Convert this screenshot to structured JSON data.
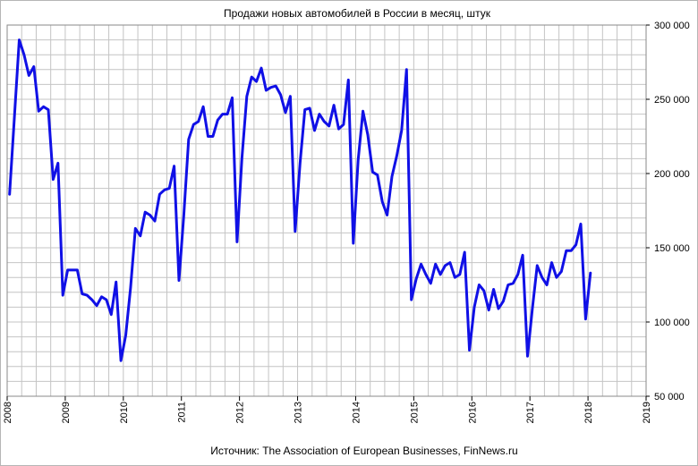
{
  "chart_data": {
    "type": "line",
    "title": "Продажи новых автомобилей в России в месяц, штук",
    "source": "Источник: The Association of European Businesses, FinNews.ru",
    "xlabel": "",
    "ylabel": "",
    "xlim": [
      2008,
      2019
    ],
    "ylim": [
      50000,
      300000
    ],
    "x_ticks": [
      "2008",
      "2009",
      "2010",
      "2011",
      "2012",
      "2013",
      "2014",
      "2015",
      "2016",
      "2017",
      "2018",
      "2019"
    ],
    "y_ticks": [
      {
        "value": 50000,
        "label": "50 000"
      },
      {
        "value": 100000,
        "label": "100 000"
      },
      {
        "value": 150000,
        "label": "150 000"
      },
      {
        "value": 200000,
        "label": "200 000"
      },
      {
        "value": 250000,
        "label": "250 000"
      },
      {
        "value": 300000,
        "label": "300 000"
      }
    ],
    "grid": true,
    "line_color": "#1010e6",
    "series": [
      {
        "name": "",
        "start": "2008-01",
        "frequency": "monthly",
        "values": [
          186000,
          238000,
          290000,
          280000,
          266000,
          272000,
          242000,
          245000,
          243000,
          196000,
          207000,
          118000,
          135000,
          135000,
          135000,
          119000,
          118000,
          115000,
          111000,
          117000,
          115000,
          105000,
          127000,
          74000,
          91000,
          123000,
          163000,
          158000,
          174000,
          172000,
          168000,
          186000,
          189000,
          190000,
          205000,
          128000,
          172000,
          223000,
          233000,
          235000,
          245000,
          225000,
          225000,
          236000,
          240000,
          240000,
          251000,
          154000,
          210000,
          252000,
          265000,
          262000,
          271000,
          256000,
          258000,
          259000,
          253000,
          241000,
          252000,
          161000,
          207000,
          243000,
          244000,
          229000,
          240000,
          235000,
          232000,
          246000,
          230000,
          233000,
          263000,
          153000,
          209000,
          242000,
          226000,
          201000,
          199000,
          181000,
          172000,
          198000,
          212000,
          229000,
          270000,
          115000,
          129000,
          139000,
          132000,
          126000,
          139000,
          132000,
          138000,
          140000,
          130000,
          132000,
          147000,
          81000,
          110000,
          125000,
          121000,
          108000,
          122000,
          109000,
          114000,
          125000,
          126000,
          132000,
          145000,
          77000,
          109000,
          138000,
          130000,
          125000,
          140000,
          130000,
          134000,
          148000,
          148000,
          152000,
          166000,
          102000,
          133000
        ]
      }
    ]
  }
}
